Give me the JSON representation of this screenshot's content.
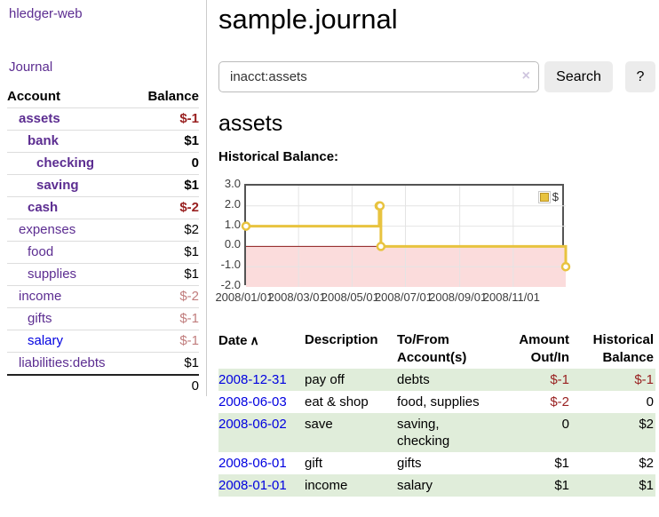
{
  "app": {
    "brand": "hledger-web",
    "nav": {
      "journal": "Journal"
    }
  },
  "sidebar": {
    "header": {
      "account": "Account",
      "balance": "Balance"
    },
    "accounts": [
      {
        "name": "assets",
        "balance": "$-1",
        "indent": 0,
        "emph": true
      },
      {
        "name": "bank",
        "balance": "$1",
        "indent": 1,
        "emph": true
      },
      {
        "name": "checking",
        "balance": "0",
        "indent": 2,
        "emph": true
      },
      {
        "name": "saving",
        "balance": "$1",
        "indent": 2,
        "emph": true
      },
      {
        "name": "cash",
        "balance": "$-2",
        "indent": 1,
        "emph": true
      },
      {
        "name": "expenses",
        "balance": "$2",
        "indent": 0
      },
      {
        "name": "food",
        "balance": "$1",
        "indent": 1
      },
      {
        "name": "supplies",
        "balance": "$1",
        "indent": 1
      },
      {
        "name": "income",
        "balance": "$-2",
        "indent": 0
      },
      {
        "name": "gifts",
        "balance": "$-1",
        "indent": 1
      },
      {
        "name": "salary",
        "balance": "$-1",
        "indent": 1,
        "unvisited": true
      },
      {
        "name": "liabilities:debts",
        "balance": "$1",
        "indent": 0
      }
    ],
    "total": "0"
  },
  "main": {
    "title": "sample.journal",
    "search": {
      "value": "inacct:assets",
      "clear": "×",
      "submit": "Search",
      "help": "?"
    },
    "heading": "assets",
    "chart_title": "Historical Balance:"
  },
  "chart_data": {
    "type": "line",
    "step": true,
    "title": "Historical Balance",
    "series": [
      {
        "name": "$",
        "color": "#e8c33f",
        "points": [
          [
            "2008-01-01",
            1
          ],
          [
            "2008-06-01",
            2
          ],
          [
            "2008-06-02",
            2
          ],
          [
            "2008-06-03",
            0
          ],
          [
            "2008-12-31",
            -1
          ]
        ]
      }
    ],
    "x_range": [
      "2008-01-01",
      "2008-12-31"
    ],
    "x_ticks": [
      "2008/01/01",
      "2008/03/01",
      "2008/05/01",
      "2008/07/01",
      "2008/09/01",
      "2008/11/01"
    ],
    "y_ticks": [
      "3.0",
      "2.0",
      "1.0",
      "0.0",
      "-1.0",
      "-2.0"
    ],
    "ylim": [
      -2,
      3
    ],
    "grid": true,
    "legend_position": "top-right",
    "negative_region_fill": "#fbdcdc",
    "zero_line_color": "#8b1a1a",
    "grid_color": "#e4e4e4"
  },
  "transactions": {
    "headers": [
      "Date",
      "Description",
      "To/From Account(s)",
      "Amount Out/In",
      "Historical Balance"
    ],
    "sort_arrow": "∧",
    "rows": [
      {
        "date": "2008-12-31",
        "description": "pay off",
        "accounts": "debts",
        "amount": "$-1",
        "balance": "$-1"
      },
      {
        "date": "2008-06-03",
        "description": "eat & shop",
        "accounts": "food, supplies",
        "amount": "$-2",
        "balance": "0"
      },
      {
        "date": "2008-06-02",
        "description": "save",
        "accounts": "saving, checking",
        "amount": "0",
        "balance": "$2"
      },
      {
        "date": "2008-06-01",
        "description": "gift",
        "accounts": "gifts",
        "amount": "$1",
        "balance": "$2"
      },
      {
        "date": "2008-01-01",
        "description": "income",
        "accounts": "salary",
        "amount": "$1",
        "balance": "$1"
      }
    ]
  }
}
